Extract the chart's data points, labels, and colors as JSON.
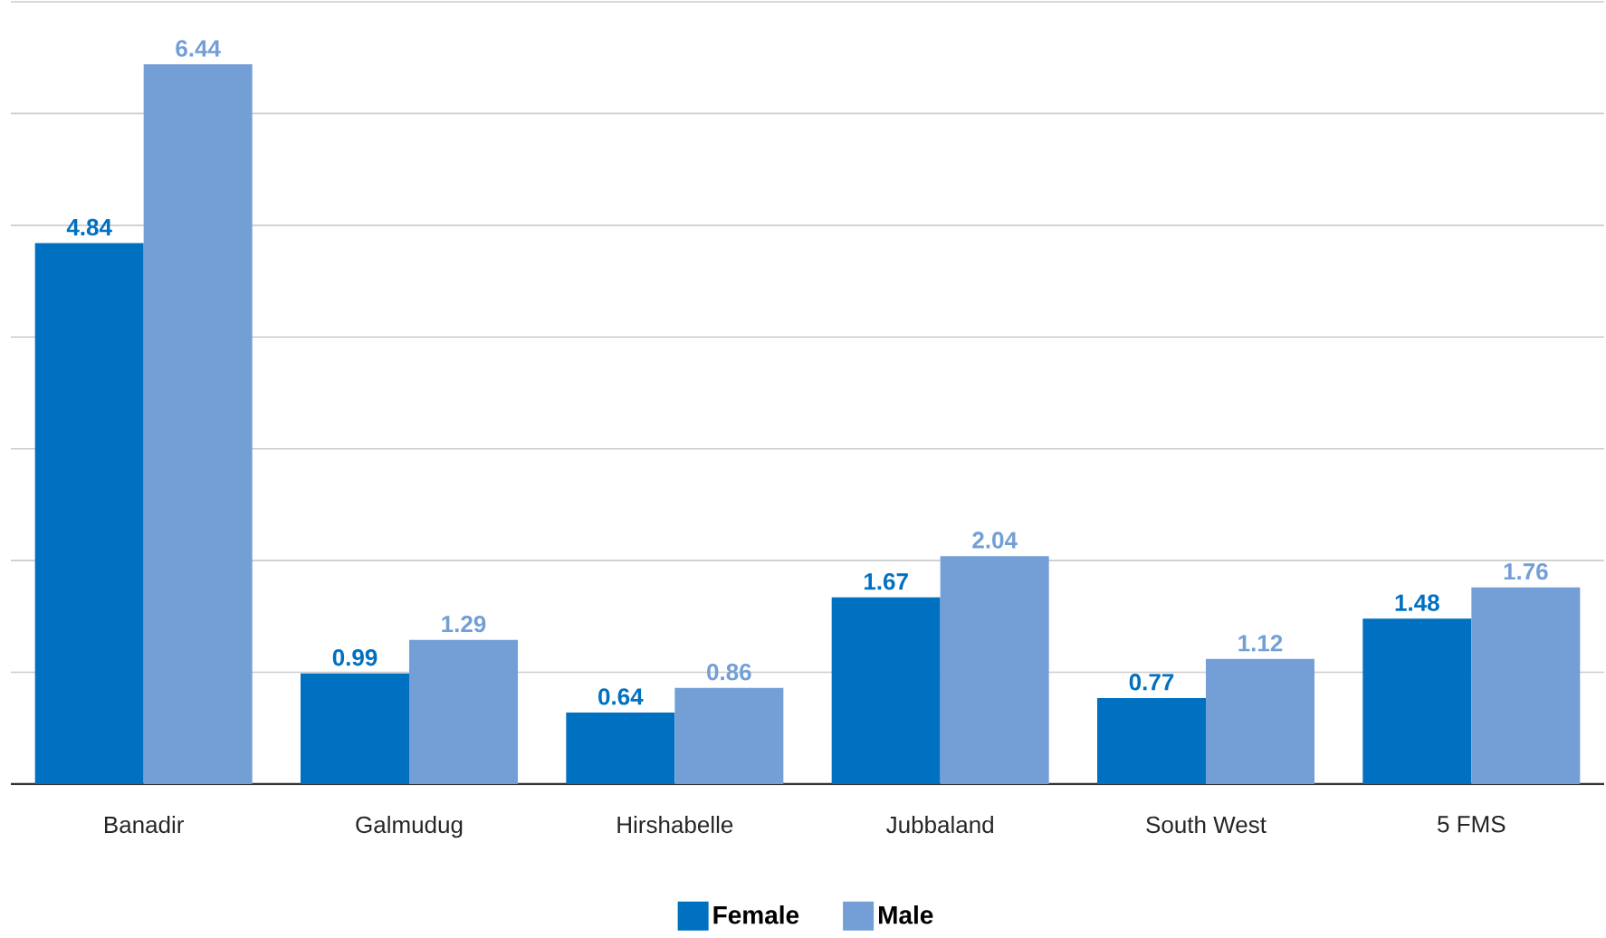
{
  "chart_data": {
    "type": "bar",
    "categories": [
      "Banadir",
      "Galmudug",
      "Hirshabelle",
      "Jubbaland",
      "South West",
      "5 FMS"
    ],
    "series": [
      {
        "name": "Female",
        "color": "#0070c0",
        "values": [
          4.84,
          0.99,
          0.64,
          1.67,
          0.77,
          1.48
        ]
      },
      {
        "name": "Male",
        "color": "#739fd6",
        "values": [
          6.44,
          1.29,
          0.86,
          2.04,
          1.12,
          1.76
        ]
      }
    ],
    "ylim": [
      0,
      7
    ],
    "yticks": [
      {
        "value": 0,
        "label": null
      },
      {
        "value": 1,
        "label": null
      },
      {
        "value": 2,
        "label": null
      },
      {
        "value": 3,
        "label": null
      },
      {
        "value": 4,
        "label": null
      },
      {
        "value": 5,
        "label": null
      },
      {
        "value": 6,
        "label": null
      },
      {
        "value": 7,
        "label": null
      }
    ],
    "tick_labels": "x",
    "grid": "y",
    "legend": "bottom",
    "data_labels": true
  }
}
